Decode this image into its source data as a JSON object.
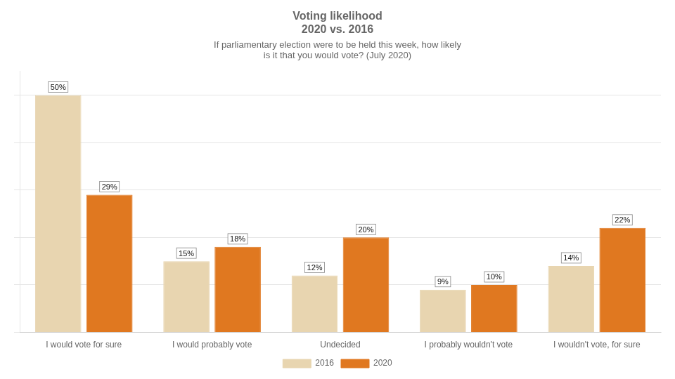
{
  "chart_data": {
    "type": "bar",
    "title": [
      "Voting likelihood",
      "2020 vs. 2016"
    ],
    "subtitle": [
      "If parliamentary election were to be held this week, how likely",
      "is it that you would vote? (July 2020)"
    ],
    "categories": [
      "I would vote for sure",
      "I would probably vote",
      "Undecided",
      "I probably wouldn't vote",
      "I wouldn't vote, for sure"
    ],
    "series": [
      {
        "name": "2016",
        "color": "#e8d5b0",
        "values": [
          50,
          15,
          12,
          9,
          14
        ],
        "value_labels": [
          "50%",
          "15%",
          "12%",
          "9%",
          "14%"
        ]
      },
      {
        "name": "2020",
        "color": "#e07820",
        "values": [
          29,
          18,
          20,
          10,
          22
        ],
        "value_labels": [
          "29%",
          "18%",
          "20%",
          "10%",
          "22%"
        ]
      }
    ],
    "ylim": [
      0,
      55
    ],
    "yticks": [
      0,
      10,
      20,
      30,
      40,
      50
    ],
    "grid": true,
    "legend": "bottom",
    "data_labels": true,
    "tick_labels": "x"
  }
}
